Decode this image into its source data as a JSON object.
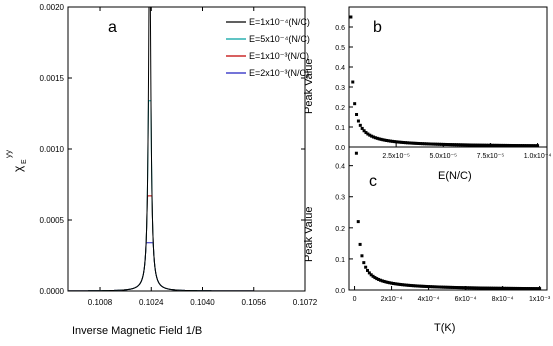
{
  "chart_data": [
    {
      "panel": "a",
      "type": "line",
      "ylabel_main": "χ",
      "ylabel_sub": "E",
      "ylabel_sup": "yy",
      "xlabel": "Inverse Magnetic Field 1/B",
      "xlim": [
        0.0998,
        0.1072
      ],
      "ylim": [
        0,
        0.002
      ],
      "xticks": [
        "0.1008",
        "0.1024",
        "0.1040",
        "0.1056",
        "0.1072"
      ],
      "xtick_values": [
        0.1008,
        0.1024,
        0.104,
        0.1056,
        0.1072
      ],
      "yticks": [
        "0.0000",
        "0.0005",
        "0.0010",
        "0.0015",
        "0.0020"
      ],
      "ytick_values": [
        0,
        0.0005,
        0.001,
        0.0015,
        0.002
      ],
      "legend_position": "top-right",
      "peak_x": 0.10235,
      "series": [
        {
          "name": "E=1x10⁻⁴(N/C)",
          "color": "#000000",
          "peak": 0.0025
        },
        {
          "name": "E=5x10⁻⁴(N/C)",
          "color": "#00a0a0",
          "peak": 0.00134
        },
        {
          "name": "E=1x10⁻³(N/C)",
          "color": "#c00000",
          "peak": 0.00067
        },
        {
          "name": "E=2x10⁻³(N/C)",
          "color": "#2020c0",
          "peak": 0.00034
        }
      ]
    },
    {
      "panel": "b",
      "type": "scatter",
      "ylabel": "Peak Value",
      "xlabel": "E(N/C)",
      "xlim": [
        0,
        0.000105
      ],
      "ylim": [
        0,
        0.7
      ],
      "xticks": [
        "2.5x10⁻⁵",
        "5.0x10⁻⁵",
        "7.5x10⁻⁵",
        "1.0x10⁻⁴"
      ],
      "xtick_values": [
        2.5e-05,
        5e-05,
        7.5e-05,
        0.0001
      ],
      "yticks": [
        "0.0",
        "0.1",
        "0.2",
        "0.3",
        "0.4",
        "0.5",
        "0.6"
      ],
      "ytick_values": [
        0,
        0.1,
        0.2,
        0.3,
        0.4,
        0.5,
        0.6
      ],
      "x_first": 1e-06,
      "x_last": 0.0001,
      "point_count": 100,
      "y_first": 0.65,
      "y_last": 0.0065
    },
    {
      "panel": "c",
      "type": "scatter",
      "ylabel": "Peak Value",
      "xlabel": "T(K)",
      "xlim": [
        -3e-05,
        0.00104
      ],
      "ylim": [
        0,
        0.46
      ],
      "xticks": [
        "0",
        "2x10⁻⁴",
        "4x10⁻⁴",
        "6x10⁻⁴",
        "8x10⁻⁴",
        "1x10⁻³"
      ],
      "xtick_values": [
        0,
        0.0002,
        0.0004,
        0.0006,
        0.0008,
        0.001
      ],
      "yticks": [
        "0.0",
        "0.1",
        "0.2",
        "0.3",
        "0.4"
      ],
      "ytick_values": [
        0,
        0.1,
        0.2,
        0.3,
        0.4
      ],
      "x_first": 1e-05,
      "x_last": 0.001,
      "point_count": 100,
      "y_first": 0.44,
      "y_last": 0.0044
    }
  ]
}
